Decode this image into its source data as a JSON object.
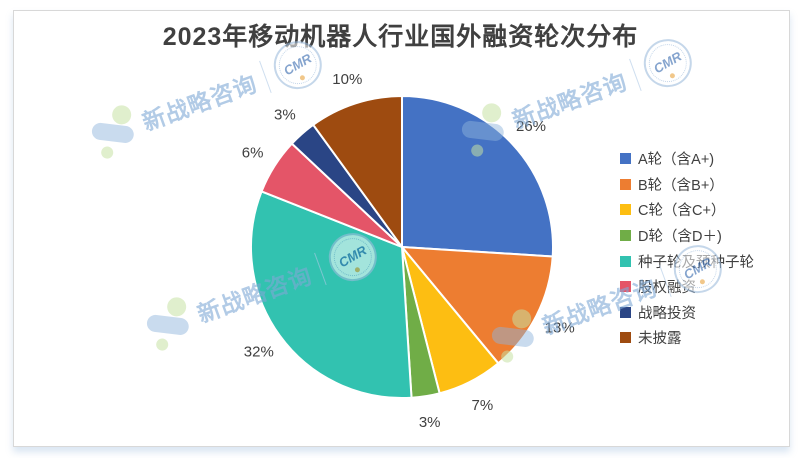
{
  "title": "2023年移动机器人行业国外融资轮次分布",
  "chart_data": {
    "type": "pie",
    "title": "2023年移动机器人行业国外融资轮次分布",
    "value_label_format": "percent",
    "start_angle_deg": 0,
    "direction": "clockwise",
    "legend_position": "right",
    "series": [
      {
        "label": "A轮（含A+)",
        "value": 26,
        "color": "#4472C4"
      },
      {
        "label": "B轮（含B+）",
        "value": 13,
        "color": "#ED7D31"
      },
      {
        "label": "C轮（含C+）",
        "value": 7,
        "color": "#FDBE12"
      },
      {
        "label": "D轮（含D＋)",
        "value": 3,
        "color": "#70AD47"
      },
      {
        "label": "种子轮及预种子轮",
        "value": 32,
        "color": "#32C2B0"
      },
      {
        "label": "股权融资",
        "value": 6,
        "color": "#E45568"
      },
      {
        "label": "战略投资",
        "value": 3,
        "color": "#2A4585"
      },
      {
        "label": "未披露",
        "value": 10,
        "color": "#9E4B10"
      }
    ]
  },
  "watermark": {
    "brand_text": "新战略咨询",
    "logo_text": "CMR"
  },
  "frame": {
    "border_color": "#D8D8D8",
    "background": "#FFFFFF",
    "text_color": "#404040"
  }
}
